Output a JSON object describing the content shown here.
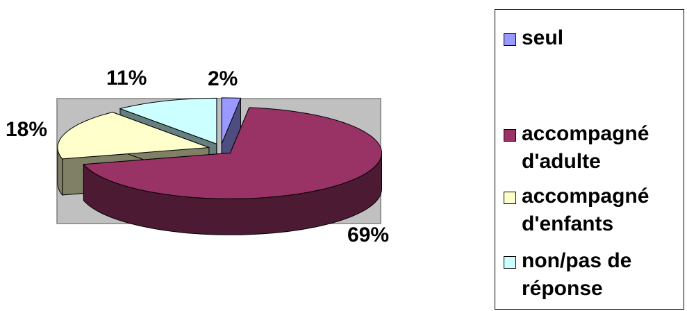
{
  "chart_data": {
    "type": "pie",
    "style": "3d-exploded",
    "categories": [
      "seul",
      "accompagné d'adulte",
      "accompagné d'enfants",
      "non/pas de réponse"
    ],
    "values": [
      2,
      69,
      18,
      11
    ],
    "data_labels": [
      "2%",
      "69%",
      "18%",
      "11%"
    ],
    "colors": [
      "#9999FF",
      "#993366",
      "#FFFFCC",
      "#CCFFFF"
    ],
    "plot_area_background": "#C0C0C0",
    "legend_position": "right"
  },
  "legend": {
    "items": [
      {
        "label": "seul",
        "color": "#9999FF"
      },
      {
        "label": "accompagné\nd'adulte",
        "color": "#993366"
      },
      {
        "label": "accompagné\nd'enfants",
        "color": "#FFFFCC"
      },
      {
        "label": "non/pas de\nréponse",
        "color": "#CCFFFF"
      }
    ]
  }
}
